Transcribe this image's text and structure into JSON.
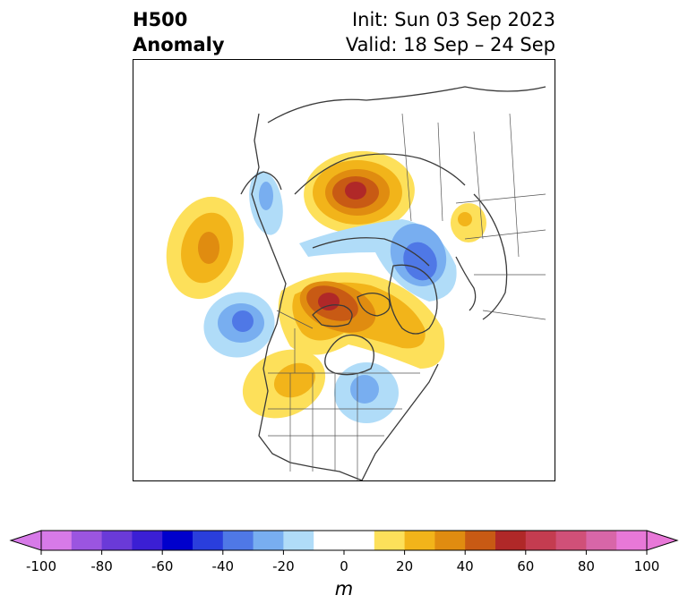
{
  "title": {
    "line1": "H500",
    "line2": "Anomaly",
    "init": "Init: Sun 03 Sep 2023",
    "valid": "Valid: 18 Sep – 24 Sep"
  },
  "colorbar": {
    "unit": "m",
    "levels": [
      -100,
      -90,
      -80,
      -70,
      -60,
      -50,
      -40,
      -30,
      -20,
      -10,
      10,
      20,
      30,
      40,
      50,
      60,
      70,
      80,
      90,
      100
    ],
    "colors": [
      "#d77ae8",
      "#9b55e0",
      "#6a3ad8",
      "#3b1fd4",
      "#0000cc",
      "#2a3edc",
      "#4f78e6",
      "#78aef0",
      "#b0dcf8",
      "#ffffff",
      "#fde05a",
      "#f2b41a",
      "#e08c10",
      "#c85a14",
      "#b02828",
      "#c43c50",
      "#d05078",
      "#d866a8",
      "#e878d8"
    ],
    "under_color": "#d77ae8",
    "over_color": "#e878d8",
    "tick_labels": [
      "-100",
      "-80",
      "-60",
      "-40",
      "-20",
      "0",
      "20",
      "40",
      "60",
      "80",
      "100"
    ],
    "tick_values": [
      -100,
      -80,
      -60,
      -40,
      -20,
      0,
      20,
      40,
      60,
      80,
      100
    ]
  },
  "map": {
    "projection": "north-polar-stereographic",
    "coastline_color": "#3a3a3a"
  }
}
